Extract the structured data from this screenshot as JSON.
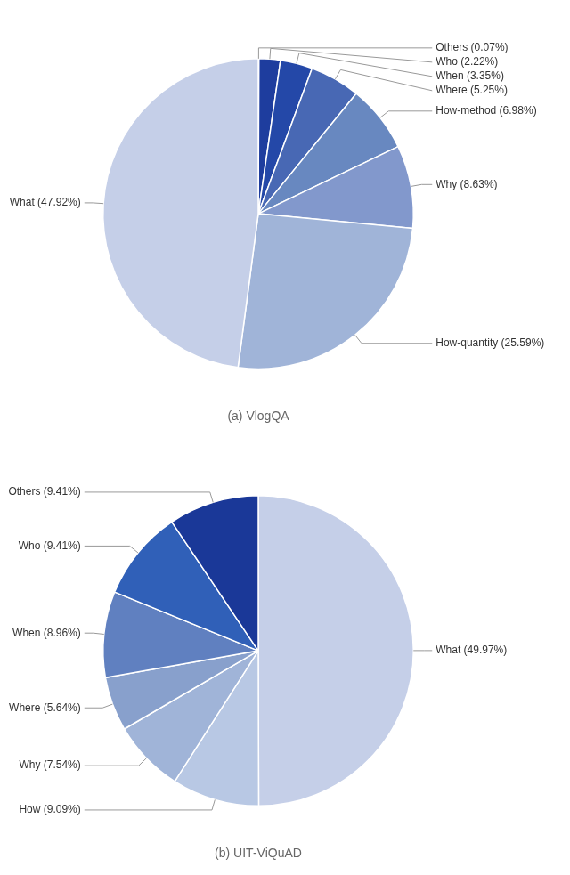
{
  "chart_data": [
    {
      "type": "pie",
      "title": "(a) VlogQA",
      "categories": [
        "Others (0.07%)",
        "Who (2.22%)",
        "When (3.35%)",
        "Where (5.25%)",
        "How-method (6.98%)",
        "Why (8.63%)",
        "How-quantity (25.59%)",
        "What (47.92%)"
      ],
      "values": [
        0.07,
        2.22,
        3.35,
        5.25,
        6.98,
        8.63,
        25.59,
        47.92
      ],
      "colors": [
        "#c5cfe8",
        "#1e3d9e",
        "#2448a8",
        "#4868b4",
        "#6888c0",
        "#8298cc",
        "#a0b4d8",
        "#c5cfe8"
      ]
    },
    {
      "type": "pie",
      "title": "(b) UIT-ViQuAD",
      "categories": [
        "What (49.97%)",
        "How (9.09%)",
        "Why (7.54%)",
        "Where (5.64%)",
        "When (8.96%)",
        "Who (9.41%)",
        "Others (9.41%)"
      ],
      "values": [
        49.97,
        9.09,
        7.54,
        5.64,
        8.96,
        9.41,
        9.41
      ],
      "colors": [
        "#c5cfe8",
        "#b8c8e4",
        "#a0b4d8",
        "#88a0cc",
        "#6080c0",
        "#3060b8",
        "#1a3898"
      ]
    }
  ]
}
